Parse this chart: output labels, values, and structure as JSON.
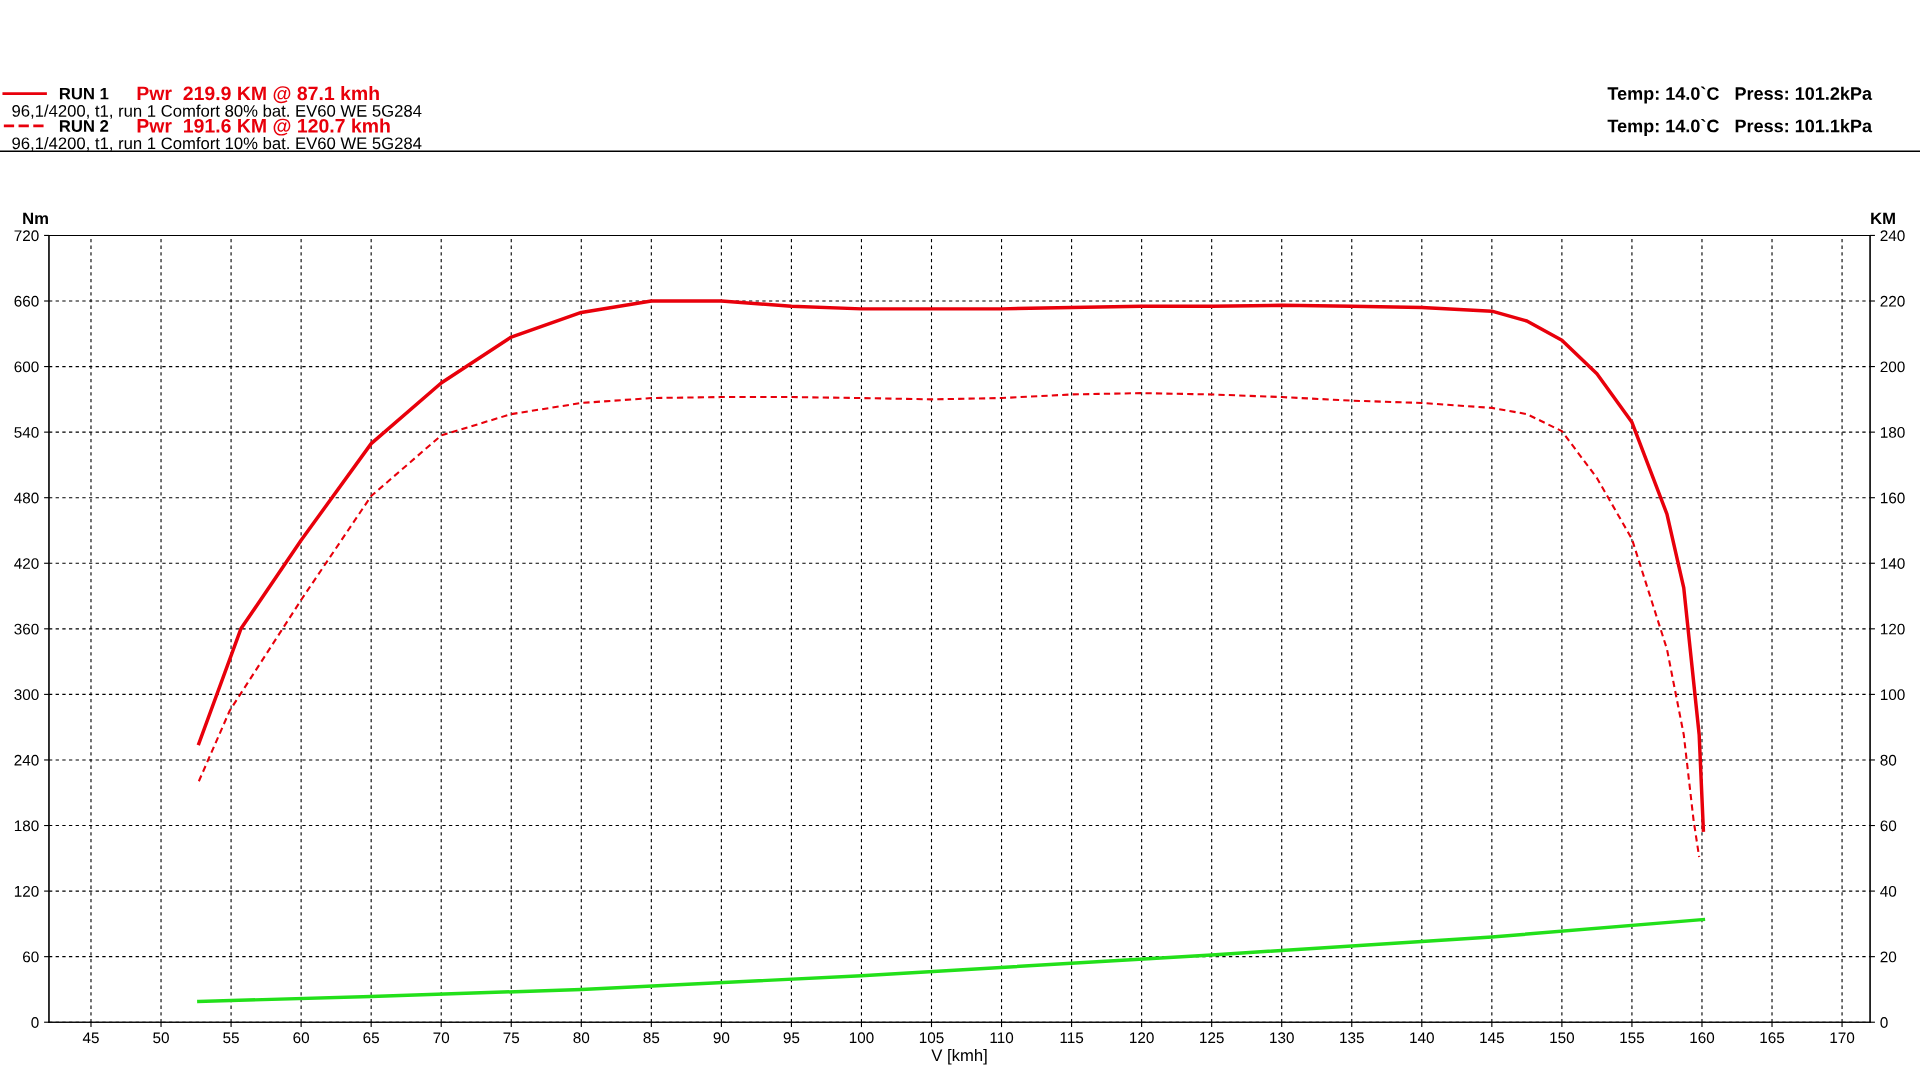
{
  "chart_data": {
    "type": "line",
    "xlabel": "V [kmh]",
    "ylabel": "Nm",
    "y2label": "KM",
    "xlim": [
      42,
      172
    ],
    "xticks": [
      45,
      50,
      55,
      60,
      65,
      70,
      75,
      80,
      85,
      90,
      95,
      100,
      105,
      110,
      115,
      120,
      125,
      130,
      135,
      140,
      145,
      150,
      155,
      160,
      165,
      170
    ],
    "ylim": [
      0,
      720
    ],
    "yticks": [
      0,
      60,
      120,
      180,
      240,
      300,
      360,
      420,
      480,
      540,
      600,
      660,
      720
    ],
    "y2lim": [
      0,
      240
    ],
    "y2ticks": [
      0,
      20,
      40,
      60,
      80,
      100,
      120,
      140,
      160,
      180,
      200,
      220,
      240
    ],
    "grid": true,
    "legend": "top left",
    "series": [
      {
        "name": "RUN 1",
        "color": "#e8000b",
        "axis": "y2",
        "line_style": "solid",
        "x": [
          52.7,
          55.7,
          60,
          65,
          70,
          75,
          80,
          85,
          90,
          95,
          100,
          105,
          110,
          115,
          120,
          125,
          130,
          135,
          140,
          145,
          147.5,
          150,
          152.5,
          155,
          157.5,
          158.7,
          159.8,
          160.1
        ],
        "values": [
          85,
          120,
          147,
          176.5,
          195,
          209,
          216.5,
          220,
          220,
          218.4,
          217.6,
          217.6,
          217.6,
          218,
          218.4,
          218.4,
          218.7,
          218.4,
          218,
          216.9,
          213.9,
          208,
          197.8,
          183,
          155,
          132.5,
          87.7,
          58.6
        ]
      },
      {
        "name": "RUN 2",
        "color": "#e8000b",
        "axis": "y2",
        "line_style": "dashed",
        "x": [
          52.7,
          54.9,
          60,
          65,
          70,
          75,
          80,
          85,
          90,
          95,
          100,
          105,
          110,
          115,
          120,
          125,
          130,
          135,
          140,
          145,
          147.5,
          150,
          152.5,
          155,
          157.5,
          158.7,
          159.4,
          159.8
        ],
        "values": [
          73.5,
          95,
          128.8,
          160.5,
          179,
          185.5,
          188.9,
          190.4,
          190.7,
          190.7,
          190.4,
          190,
          190.4,
          191.5,
          191.9,
          191.5,
          190.7,
          189.6,
          188.9,
          187.4,
          185.5,
          180.3,
          166,
          147.4,
          113.8,
          87.7,
          61.6,
          50.4
        ]
      },
      {
        "color": "#22e01a",
        "line_style": "solid",
        "x": [
          52.7,
          65,
          80,
          100,
          125,
          145,
          160.1
        ],
        "values": [
          19,
          23.5,
          30,
          42.5,
          61.6,
          78,
          94
        ]
      }
    ],
    "annotations": [
      "Pwr  219.9 KM @ 87.1 kmh",
      "96,1/4200, t1, run 1 Comfort 80% bat. EV60 WE 5G284",
      "Temp: 14.0`C   Press: 101.2kPa",
      "Pwr  191.6 KM @ 120.7 kmh",
      "96,1/4200, t1, run 1 Comfort 10% bat. EV60 WE 5G284",
      "Temp: 14.0`C   Press: 101.1kPa"
    ]
  }
}
